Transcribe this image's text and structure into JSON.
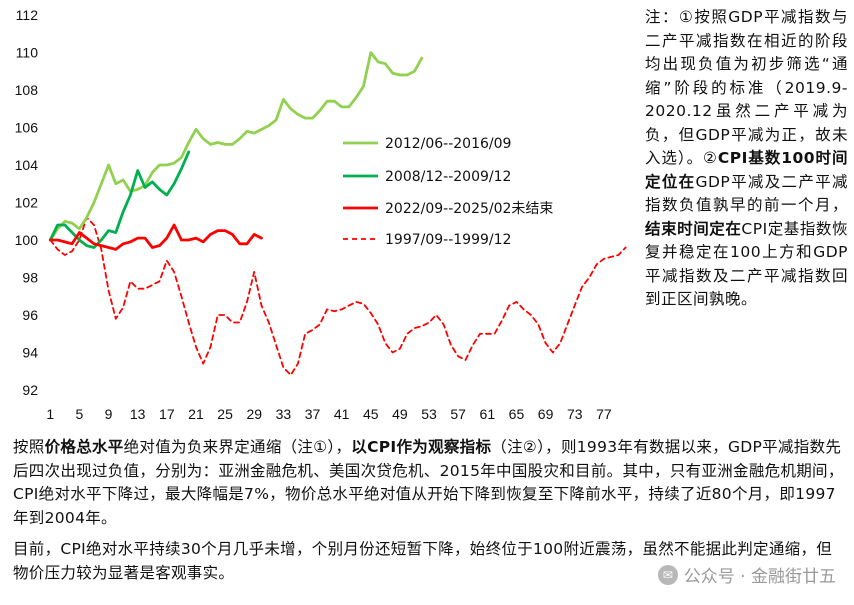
{
  "chart_data": {
    "type": "line",
    "x_ticks": [
      1,
      5,
      9,
      13,
      17,
      21,
      25,
      29,
      33,
      37,
      41,
      45,
      49,
      53,
      57,
      61,
      65,
      69,
      73,
      77
    ],
    "xlim": [
      0,
      81
    ],
    "ylim": [
      92,
      112
    ],
    "y_ticks": [
      92,
      94,
      96,
      98,
      100,
      102,
      104,
      106,
      108,
      110,
      112
    ],
    "grid": false,
    "legend_position": "center",
    "series": [
      {
        "name": "2012/06--2016/09",
        "color": "#92d050",
        "style": "solid",
        "values": [
          100.0,
          100.6,
          101.0,
          100.9,
          100.6,
          101.2,
          102.0,
          103.0,
          104.0,
          103.0,
          103.2,
          102.6,
          102.7,
          102.9,
          103.6,
          104.0,
          104.0,
          104.1,
          104.4,
          105.2,
          105.9,
          105.4,
          105.1,
          105.2,
          105.1,
          105.1,
          105.4,
          105.8,
          105.7,
          105.9,
          106.1,
          106.4,
          107.5,
          107.0,
          106.7,
          106.5,
          106.5,
          106.9,
          107.4,
          107.4,
          107.1,
          107.1,
          107.6,
          108.2,
          110.0,
          109.5,
          109.4,
          108.9,
          108.8,
          108.8,
          109.0,
          109.7
        ]
      },
      {
        "name": "2008/12--2009/12",
        "color": "#00b050",
        "style": "solid",
        "values": [
          100.0,
          100.8,
          100.8,
          100.4,
          100.0,
          99.7,
          99.6,
          100.0,
          100.5,
          100.4,
          101.5,
          102.4,
          103.7,
          102.8,
          103.1,
          102.7,
          102.4,
          103.0,
          103.8,
          104.7
        ]
      },
      {
        "name": "2022/09--2025/02未结束",
        "color": "#ff0000",
        "style": "solid",
        "values": [
          100.0,
          100.0,
          99.9,
          99.8,
          100.4,
          100.1,
          99.8,
          99.7,
          99.6,
          99.5,
          99.8,
          99.9,
          100.1,
          100.1,
          99.6,
          99.7,
          100.1,
          100.8,
          100.0,
          100.0,
          100.1,
          99.9,
          100.3,
          100.5,
          100.5,
          100.3,
          99.8,
          99.8,
          100.3,
          100.1
        ]
      },
      {
        "name": "1997/09--1999/12",
        "color": "#ff0000",
        "style": "dashed",
        "values": [
          100.0,
          99.5,
          99.2,
          99.4,
          100.0,
          101.2,
          100.8,
          99.5,
          97.3,
          95.8,
          96.4,
          97.8,
          97.4,
          97.4,
          97.6,
          97.8,
          98.9,
          98.3,
          97.0,
          95.6,
          94.3,
          93.4,
          94.3,
          96.0,
          96.0,
          95.6,
          95.6,
          96.7,
          98.3,
          96.5,
          95.6,
          94.4,
          93.2,
          92.8,
          93.4,
          95.0,
          95.2,
          95.5,
          96.3,
          96.2,
          96.3,
          96.5,
          96.7,
          96.6,
          96.1,
          95.5,
          94.5,
          94.0,
          94.2,
          95.0,
          95.3,
          95.4,
          95.6,
          96.0,
          95.5,
          94.4,
          93.8,
          93.6,
          94.4,
          95.0,
          95.0,
          95.0,
          95.7,
          96.5,
          96.7,
          96.3,
          96.0,
          95.5,
          94.5,
          94.0,
          94.5,
          95.5,
          96.5,
          97.5,
          98.0,
          98.7,
          99.0,
          99.1,
          99.2,
          99.6
        ]
      }
    ]
  },
  "note": {
    "lead": "注：①按照GDP平减指数与二产平减指数在相近的阶段均出现负值为初步筛选“通缩”阶段的标准（2019.9-2020.12虽然二产平减为负，但GDP平减为正，故未入选）。②",
    "bold1": "CPI基数100时间定位在",
    "mid": "GDP平减及二产平减指数负值孰早的前一个月，",
    "bold2": "结束时间定在",
    "tail": "CPI定基指数恢复并稳定在100上方和GDP平减指数及二产平减指数回到正区间孰晚。"
  },
  "para1": {
    "t1": "按照",
    "b1": "价格总水平",
    "t2": "绝对值为负来界定通缩（注①），",
    "b2": "以CPI作为观察指标",
    "t3": "（注②），则1993年有数据以来，GDP平减指数先后四次出现过负值，分别为：亚洲金融危机、美国次贷危机、2015年中国股灾和目前。其中，只有亚洲金融危机期间，CPI绝对水平下降过，最大降幅是7%，物价总水平绝对值从开始下降到恢复至下降前水平，持续了近80个月，即1997年到2004年。"
  },
  "para2": {
    "text": "目前，CPI绝对水平持续30个月几乎未增，个别月份还短暂下降，始终位于100附近震荡，虽然不能据此判定通缩，但物价压力较为显著是客观事实。"
  },
  "watermark": {
    "text": "公众号 · 金融街廿五",
    "icon": "wechat-icon"
  }
}
